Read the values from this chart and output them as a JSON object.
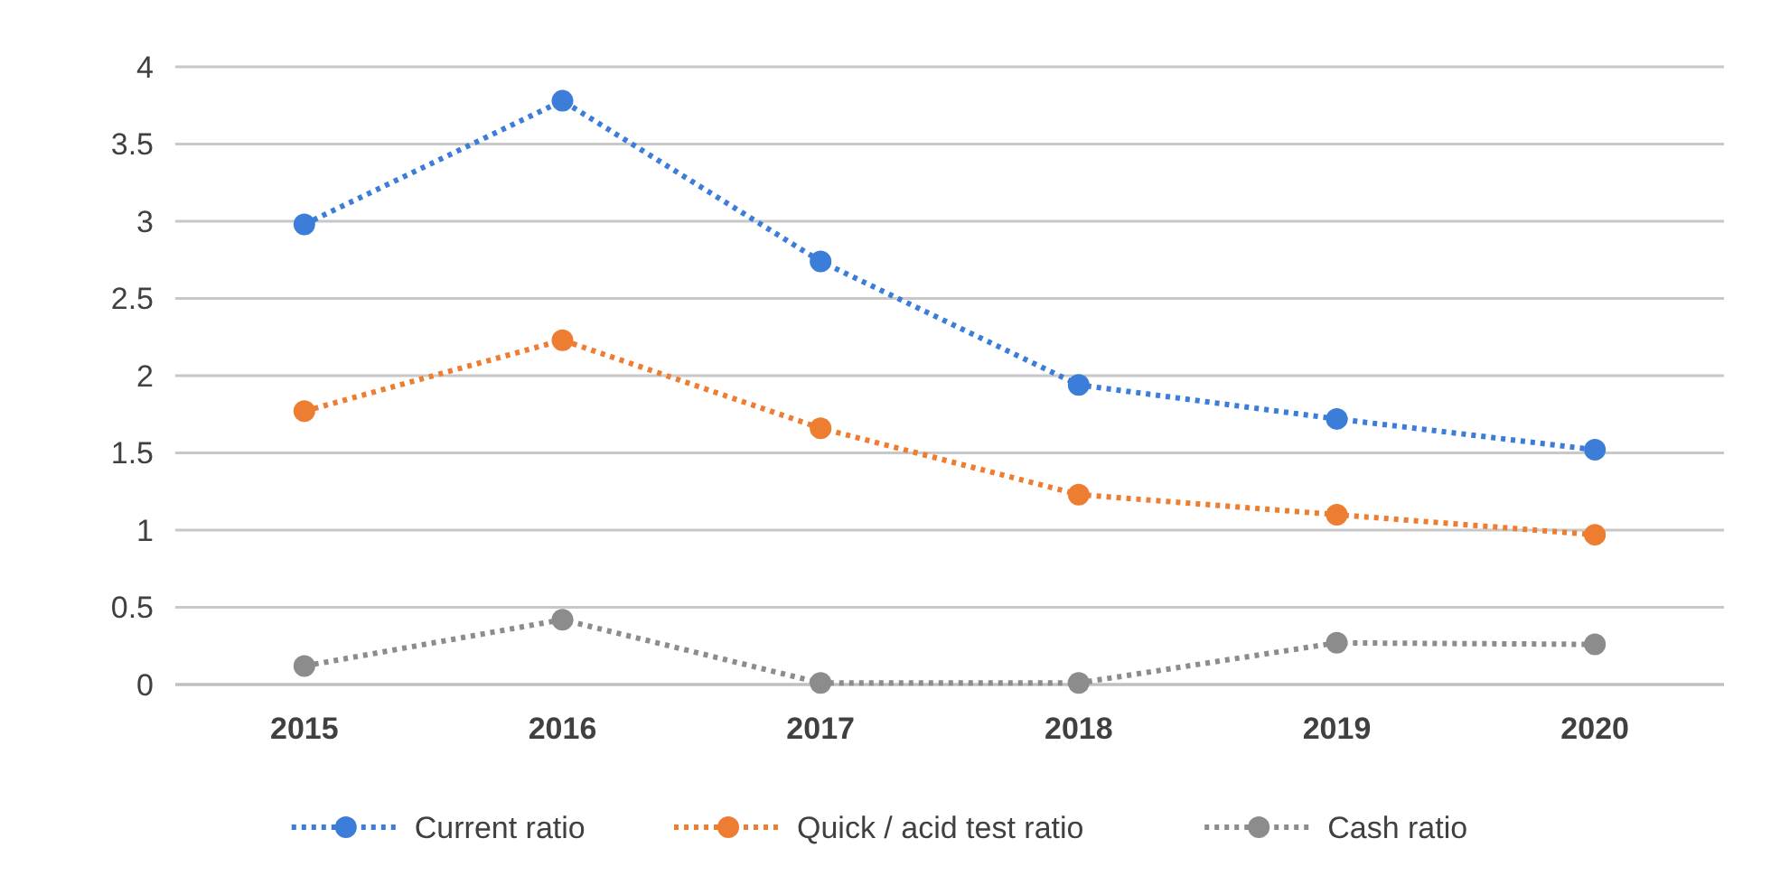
{
  "chart_data": {
    "type": "line",
    "categories": [
      "2015",
      "2016",
      "2017",
      "2018",
      "2019",
      "2020"
    ],
    "series": [
      {
        "name": "Current ratio",
        "color": "#3b7dd8",
        "values": [
          2.98,
          3.78,
          2.74,
          1.94,
          1.72,
          1.52
        ]
      },
      {
        "name": "Quick / acid test ratio",
        "color": "#ed7d31",
        "values": [
          1.77,
          2.23,
          1.66,
          1.23,
          1.1,
          0.97
        ]
      },
      {
        "name": "Cash ratio",
        "color": "#8c8c8c",
        "values": [
          0.12,
          0.42,
          0.01,
          0.01,
          0.27,
          0.26
        ]
      }
    ],
    "ylim": [
      0,
      4
    ],
    "yticks": [
      0,
      0.5,
      1,
      1.5,
      2,
      2.5,
      3,
      3.5,
      4
    ],
    "grid": "y",
    "legend": "bottom",
    "marker": "circle",
    "line_style": "dotted"
  }
}
